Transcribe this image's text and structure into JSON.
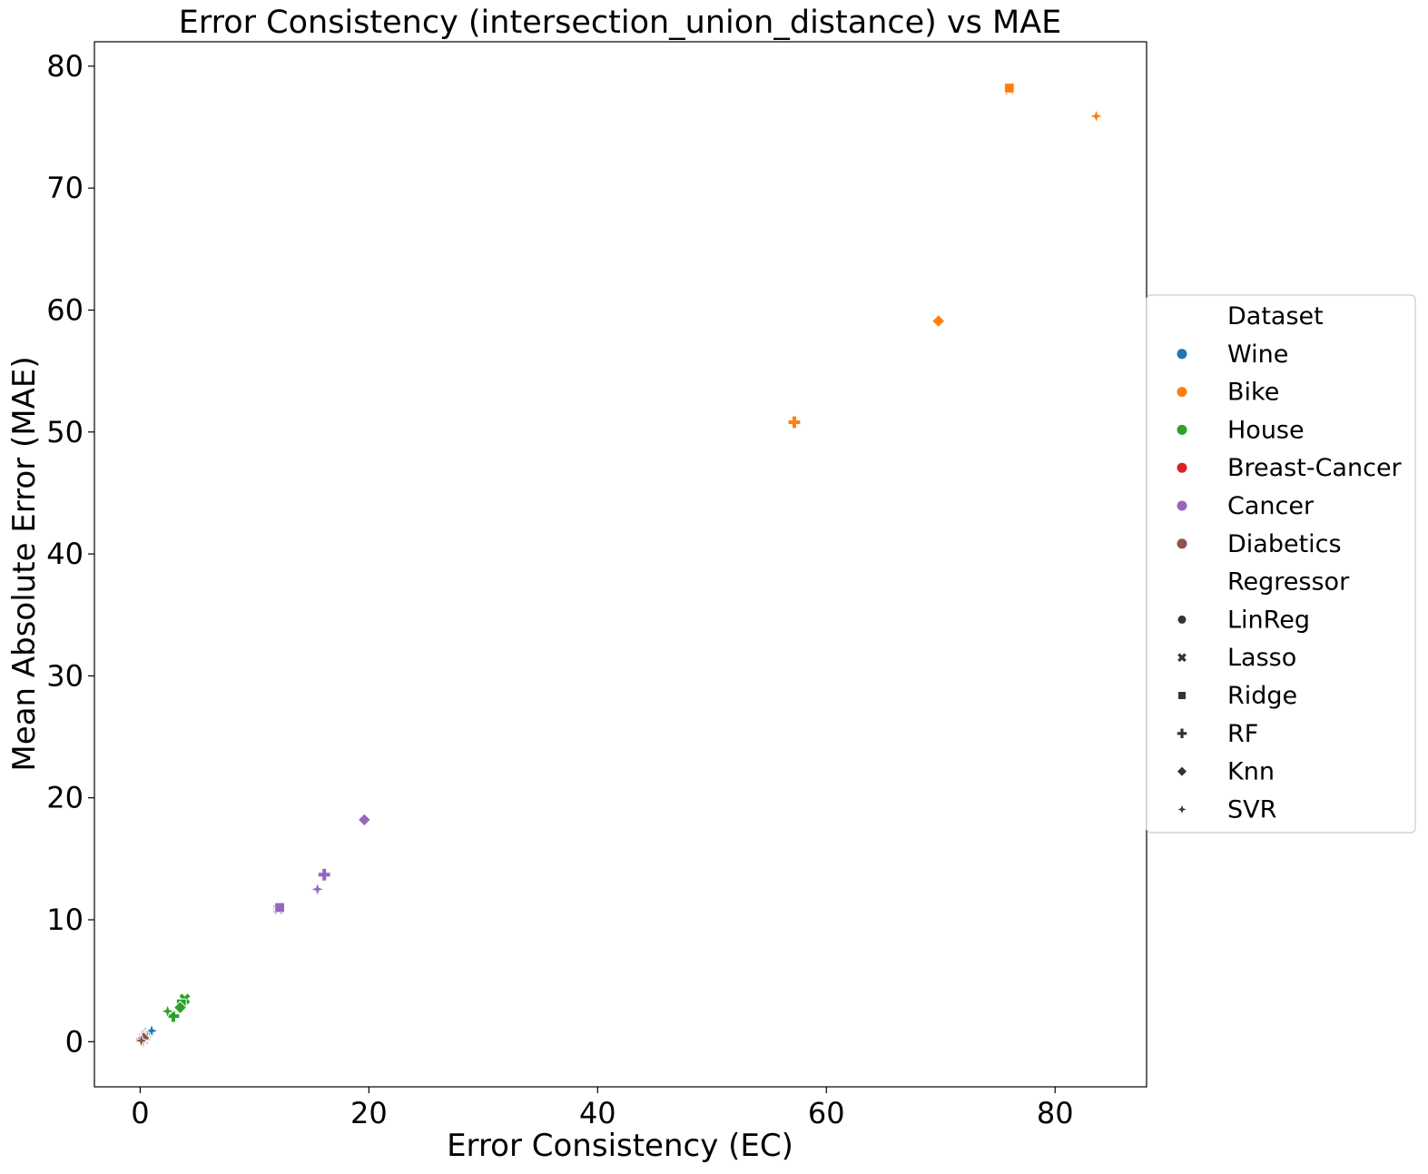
{
  "chart_data": {
    "type": "scatter",
    "title": "Error Consistency (intersection_union_distance) vs MAE",
    "xlabel": "Error Consistency (EC)",
    "ylabel": "Mean Absolute Error (MAE)",
    "xlim": [
      -4,
      88
    ],
    "ylim": [
      -3.7,
      82
    ],
    "xticks": [
      0,
      20,
      40,
      60,
      80
    ],
    "yticks": [
      0,
      10,
      20,
      30,
      40,
      50,
      60,
      70,
      80
    ],
    "grid": false,
    "legend_position": "right",
    "legend": {
      "hue_title": "Dataset",
      "datasets": [
        {
          "name": "Wine",
          "color": "#1f77b4"
        },
        {
          "name": "Bike",
          "color": "#ff7f0e"
        },
        {
          "name": "House",
          "color": "#2ca02c"
        },
        {
          "name": "Breast-Cancer",
          "color": "#d62728"
        },
        {
          "name": "Cancer",
          "color": "#9467bd"
        },
        {
          "name": "Diabetics",
          "color": "#8c564b"
        }
      ],
      "style_title": "Regressor",
      "regressors": [
        {
          "name": "LinReg",
          "marker": "circle"
        },
        {
          "name": "Lasso",
          "marker": "x"
        },
        {
          "name": "Ridge",
          "marker": "square"
        },
        {
          "name": "RF",
          "marker": "plus"
        },
        {
          "name": "Knn",
          "marker": "diamond"
        },
        {
          "name": "SVR",
          "marker": "star"
        }
      ]
    },
    "points": [
      {
        "dataset": "Bike",
        "regressor": "LinReg",
        "x": 76.0,
        "y": 78.2
      },
      {
        "dataset": "Bike",
        "regressor": "Lasso",
        "x": 76.0,
        "y": 78.1
      },
      {
        "dataset": "Bike",
        "regressor": "Ridge",
        "x": 76.0,
        "y": 78.2
      },
      {
        "dataset": "Bike",
        "regressor": "RF",
        "x": 57.2,
        "y": 50.8
      },
      {
        "dataset": "Bike",
        "regressor": "Knn",
        "x": 69.8,
        "y": 59.1
      },
      {
        "dataset": "Bike",
        "regressor": "SVR",
        "x": 83.6,
        "y": 75.9
      },
      {
        "dataset": "Cancer",
        "regressor": "LinReg",
        "x": 12.1,
        "y": 11.0
      },
      {
        "dataset": "Cancer",
        "regressor": "Lasso",
        "x": 12.1,
        "y": 10.9
      },
      {
        "dataset": "Cancer",
        "regressor": "Ridge",
        "x": 12.2,
        "y": 11.0
      },
      {
        "dataset": "Cancer",
        "regressor": "RF",
        "x": 16.1,
        "y": 13.7
      },
      {
        "dataset": "Cancer",
        "regressor": "Knn",
        "x": 19.6,
        "y": 18.2
      },
      {
        "dataset": "Cancer",
        "regressor": "SVR",
        "x": 15.5,
        "y": 12.5
      },
      {
        "dataset": "House",
        "regressor": "LinReg",
        "x": 3.7,
        "y": 3.2
      },
      {
        "dataset": "House",
        "regressor": "Lasso",
        "x": 3.9,
        "y": 3.5
      },
      {
        "dataset": "House",
        "regressor": "Ridge",
        "x": 3.6,
        "y": 3.1
      },
      {
        "dataset": "House",
        "regressor": "RF",
        "x": 2.9,
        "y": 2.1
      },
      {
        "dataset": "House",
        "regressor": "Knn",
        "x": 3.5,
        "y": 2.8
      },
      {
        "dataset": "House",
        "regressor": "SVR",
        "x": 2.4,
        "y": 2.5
      },
      {
        "dataset": "Wine",
        "regressor": "LinReg",
        "x": 0.6,
        "y": 0.6
      },
      {
        "dataset": "Wine",
        "regressor": "Lasso",
        "x": 0.7,
        "y": 0.7
      },
      {
        "dataset": "Wine",
        "regressor": "Ridge",
        "x": 0.6,
        "y": 0.6
      },
      {
        "dataset": "Wine",
        "regressor": "RF",
        "x": 0.5,
        "y": 0.5
      },
      {
        "dataset": "Wine",
        "regressor": "Knn",
        "x": 0.7,
        "y": 0.6
      },
      {
        "dataset": "Wine",
        "regressor": "SVR",
        "x": 1.0,
        "y": 0.9
      },
      {
        "dataset": "Breast-Cancer",
        "regressor": "LinReg",
        "x": 0.3,
        "y": 0.2
      },
      {
        "dataset": "Breast-Cancer",
        "regressor": "Lasso",
        "x": 0.4,
        "y": 0.3
      },
      {
        "dataset": "Breast-Cancer",
        "regressor": "Ridge",
        "x": 0.3,
        "y": 0.2
      },
      {
        "dataset": "Breast-Cancer",
        "regressor": "RF",
        "x": 0.2,
        "y": 0.1
      },
      {
        "dataset": "Breast-Cancer",
        "regressor": "Knn",
        "x": 0.3,
        "y": 0.2
      },
      {
        "dataset": "Breast-Cancer",
        "regressor": "SVR",
        "x": 0.4,
        "y": 0.3
      },
      {
        "dataset": "Diabetics",
        "regressor": "LinReg",
        "x": 0.3,
        "y": 0.3
      },
      {
        "dataset": "Diabetics",
        "regressor": "Lasso",
        "x": 0.4,
        "y": 0.4
      },
      {
        "dataset": "Diabetics",
        "regressor": "Ridge",
        "x": 0.3,
        "y": 0.3
      },
      {
        "dataset": "Diabetics",
        "regressor": "RF",
        "x": 0.2,
        "y": 0.2
      },
      {
        "dataset": "Diabetics",
        "regressor": "Knn",
        "x": 0.3,
        "y": 0.3
      },
      {
        "dataset": "Diabetics",
        "regressor": "SVR",
        "x": 0.1,
        "y": 0.1
      }
    ]
  }
}
